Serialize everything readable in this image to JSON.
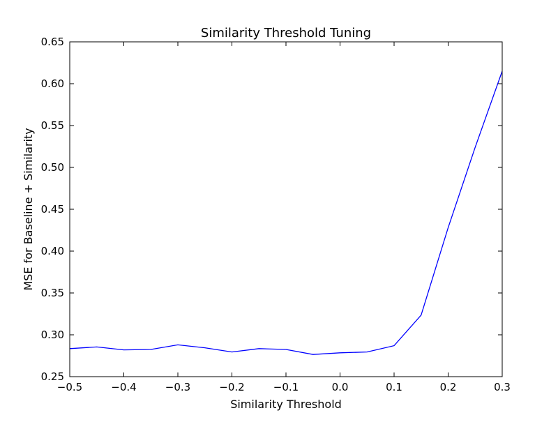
{
  "chart_data": {
    "type": "line",
    "title": "Similarity Threshold Tuning",
    "xlabel": "Similarity Threshold",
    "ylabel": "MSE for Baseline + Similarity",
    "xlim": [
      -0.5,
      0.3
    ],
    "ylim": [
      0.25,
      0.65
    ],
    "grid": false,
    "x_ticks": [
      "−0.5",
      "−0.4",
      "−0.3",
      "−0.2",
      "−0.1",
      "0.0",
      "0.1",
      "0.2",
      "0.3"
    ],
    "y_ticks": [
      "0.25",
      "0.30",
      "0.35",
      "0.40",
      "0.45",
      "0.50",
      "0.55",
      "0.60",
      "0.65"
    ],
    "series": [
      {
        "color": "#0000ff",
        "x": [
          -0.5,
          -0.45,
          -0.4,
          -0.35,
          -0.3,
          -0.25,
          -0.2,
          -0.15,
          -0.1,
          -0.05,
          0.0,
          0.05,
          0.1,
          0.15,
          0.2,
          0.25,
          0.3
        ],
        "y": [
          0.2835,
          0.2855,
          0.282,
          0.2825,
          0.288,
          0.2845,
          0.2795,
          0.2835,
          0.2825,
          0.2765,
          0.2785,
          0.2795,
          0.287,
          0.3235,
          0.428,
          0.524,
          0.615
        ]
      }
    ]
  }
}
